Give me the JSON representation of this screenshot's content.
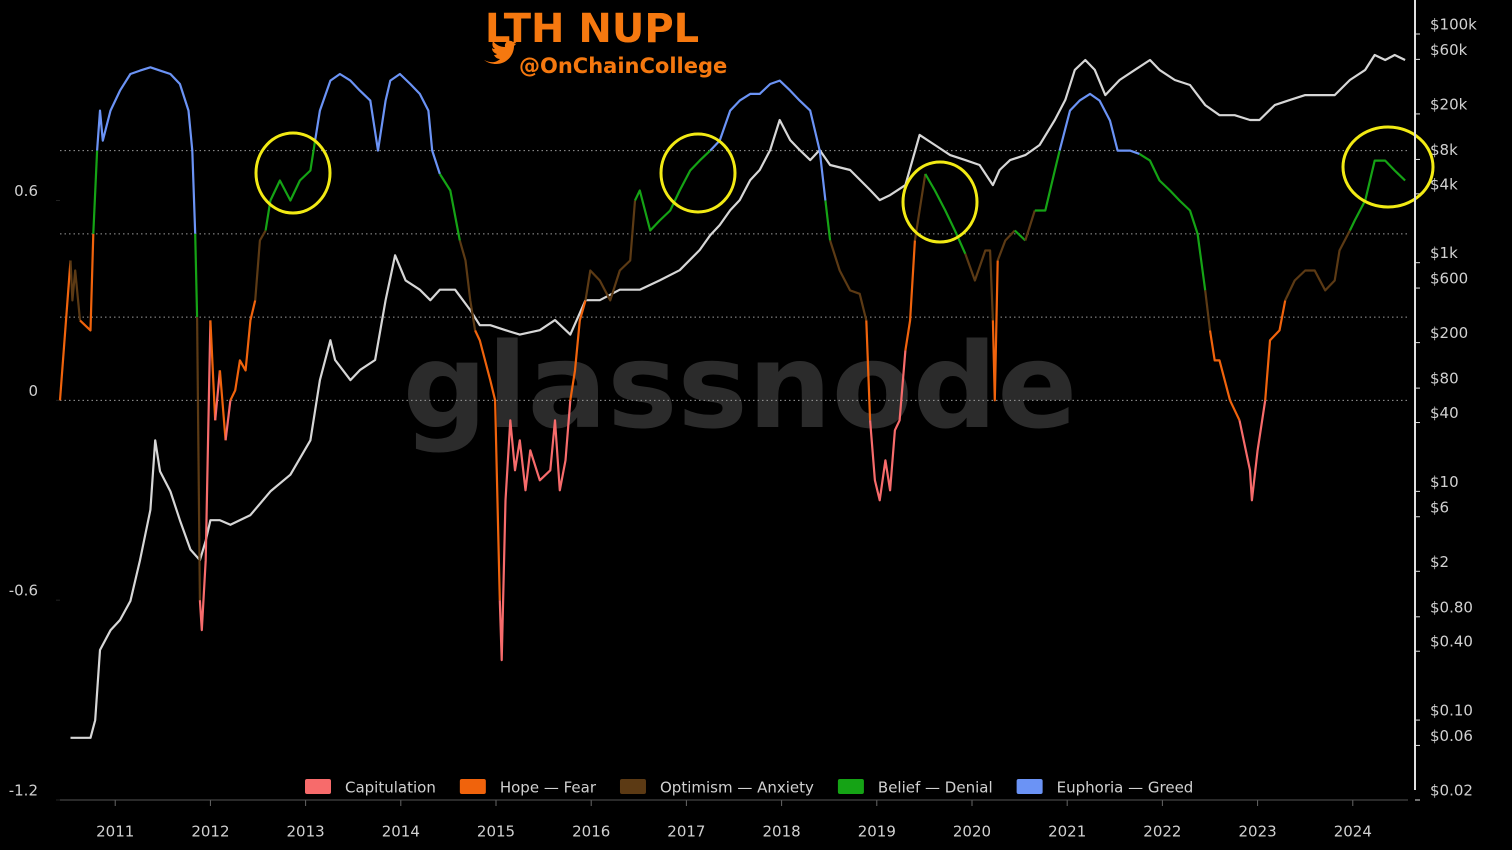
{
  "chart_data": {
    "type": "line",
    "title": "LTH NUPL",
    "subtitle": "@OnChainCollege",
    "watermark": "glassnode",
    "xlim": [
      2010.42,
      2024.58
    ],
    "xticks": [
      2011,
      2012,
      2013,
      2014,
      2015,
      2016,
      2017,
      2018,
      2019,
      2020,
      2021,
      2022,
      2023,
      2024
    ],
    "ylim": [
      -1.2,
      1.1
    ],
    "yticks": [
      -1.2,
      -0.6,
      0,
      0.6
    ],
    "y2lim": [
      0.02,
      100000
    ],
    "y2log": true,
    "y2ticks": [
      {
        "value": 100000,
        "label": "$100k"
      },
      {
        "value": 60000,
        "label": "$60k"
      },
      {
        "value": 20000,
        "label": "$20k"
      },
      {
        "value": 8000,
        "label": "$8k"
      },
      {
        "value": 4000,
        "label": "$4k"
      },
      {
        "value": 1000,
        "label": "$1k"
      },
      {
        "value": 600,
        "label": "$600"
      },
      {
        "value": 200,
        "label": "$200"
      },
      {
        "value": 80,
        "label": "$80"
      },
      {
        "value": 40,
        "label": "$40"
      },
      {
        "value": 10,
        "label": "$10"
      },
      {
        "value": 6,
        "label": "$6"
      },
      {
        "value": 2,
        "label": "$2"
      },
      {
        "value": 0.8,
        "label": "$0.80"
      },
      {
        "value": 0.4,
        "label": "$0.40"
      },
      {
        "value": 0.1,
        "label": "$0.10"
      },
      {
        "value": 0.06,
        "label": "$0.06"
      },
      {
        "value": 0.02,
        "label": "$0.02"
      }
    ],
    "zone_breaks": [
      0,
      0.25,
      0.5,
      0.75
    ],
    "zones": [
      {
        "name": "Capitulation",
        "color": "#f76b6b"
      },
      {
        "name": "Hope — Fear",
        "color": "#f0630c"
      },
      {
        "name": "Optimism — Anxiety",
        "color": "#5c3a14"
      },
      {
        "name": "Belief — Denial",
        "color": "#15a315"
      },
      {
        "name": "Euphoria — Greed",
        "color": "#6b93f5"
      }
    ],
    "series": [
      {
        "x": [
          2010.42,
          2010.53,
          2010.55,
          2010.58,
          2010.63,
          2010.74,
          2010.77,
          2010.81,
          2010.84,
          2010.87,
          2010.95,
          2011.05,
          2011.16,
          2011.26,
          2011.37,
          2011.47,
          2011.58,
          2011.68,
          2011.77,
          2011.81,
          2011.84,
          2011.86,
          2011.89,
          2011.91,
          2011.95,
          2012.0,
          2012.05,
          2012.1,
          2012.16,
          2012.21,
          2012.26,
          2012.31,
          2012.37,
          2012.42,
          2012.47,
          2012.52,
          2012.58,
          2012.63,
          2012.73,
          2012.84,
          2012.94,
          2013.05,
          2013.1,
          2013.15,
          2013.26,
          2013.36,
          2013.47,
          2013.57,
          2013.68,
          2013.76,
          2013.84,
          2013.89,
          2013.99,
          2014.1,
          2014.2,
          2014.29,
          2014.33,
          2014.41,
          2014.52,
          2014.62,
          2014.68,
          2014.73,
          2014.78,
          2014.83,
          2014.94,
          2014.99,
          2015.04,
          2015.06,
          2015.1,
          2015.15,
          2015.2,
          2015.25,
          2015.31,
          2015.36,
          2015.46,
          2015.57,
          2015.62,
          2015.67,
          2015.73,
          2015.78,
          2015.83,
          2015.88,
          2015.94,
          2015.99,
          2016.09,
          2016.2,
          2016.3,
          2016.41,
          2016.46,
          2016.51,
          2016.62,
          2016.72,
          2016.83,
          2016.93,
          2017.04,
          2017.14,
          2017.25,
          2017.35,
          2017.46,
          2017.56,
          2017.67,
          2017.77,
          2017.88,
          2017.98,
          2018.09,
          2018.19,
          2018.3,
          2018.4,
          2018.46,
          2018.51,
          2018.61,
          2018.72,
          2018.82,
          2018.89,
          2018.93,
          2018.98,
          2019.03,
          2019.09,
          2019.14,
          2019.19,
          2019.24,
          2019.3,
          2019.35,
          2019.4,
          2019.51,
          2019.61,
          2019.72,
          2019.82,
          2019.93,
          2020.03,
          2020.14,
          2020.19,
          2020.22,
          2020.24,
          2020.27,
          2020.35,
          2020.45,
          2020.56,
          2020.66,
          2020.77,
          2020.87,
          2020.92,
          2021.03,
          2021.13,
          2021.24,
          2021.34,
          2021.45,
          2021.53,
          2021.66,
          2021.76,
          2021.87,
          2021.97,
          2022.08,
          2022.18,
          2022.29,
          2022.37,
          2022.45,
          2022.5,
          2022.55,
          2022.6,
          2022.71,
          2022.81,
          2022.92,
          2022.94,
          2023.0,
          2023.08,
          2023.13,
          2023.23,
          2023.29,
          2023.39,
          2023.5,
          2023.6,
          2023.71,
          2023.81,
          2023.86,
          2023.97,
          2024.02,
          2024.13,
          2024.23,
          2024.34,
          2024.44,
          2024.55
        ],
        "values": [
          0,
          0.42,
          0.3,
          0.39,
          0.24,
          0.21,
          0.5,
          0.75,
          0.87,
          0.78,
          0.87,
          0.93,
          0.98,
          0.99,
          1.0,
          0.99,
          0.98,
          0.95,
          0.87,
          0.75,
          0.5,
          0.25,
          -0.6,
          -0.69,
          -0.48,
          0.24,
          -0.06,
          0.09,
          -0.12,
          0,
          0.03,
          0.12,
          0.09,
          0.24,
          0.3,
          0.48,
          0.51,
          0.6,
          0.66,
          0.6,
          0.66,
          0.69,
          0.78,
          0.87,
          0.96,
          0.98,
          0.96,
          0.93,
          0.9,
          0.75,
          0.9,
          0.96,
          0.98,
          0.95,
          0.92,
          0.87,
          0.75,
          0.68,
          0.63,
          0.48,
          0.42,
          0.3,
          0.21,
          0.18,
          0.06,
          0,
          -0.6,
          -0.78,
          -0.3,
          -0.06,
          -0.21,
          -0.12,
          -0.27,
          -0.15,
          -0.24,
          -0.21,
          -0.06,
          -0.27,
          -0.18,
          0,
          0.09,
          0.24,
          0.3,
          0.39,
          0.36,
          0.3,
          0.39,
          0.42,
          0.6,
          0.63,
          0.51,
          0.54,
          0.57,
          0.63,
          0.69,
          0.72,
          0.75,
          0.78,
          0.87,
          0.9,
          0.92,
          0.92,
          0.95,
          0.96,
          0.93,
          0.9,
          0.87,
          0.75,
          0.6,
          0.48,
          0.39,
          0.33,
          0.32,
          0.24,
          -0.06,
          -0.24,
          -0.3,
          -0.18,
          -0.27,
          -0.09,
          -0.06,
          0.15,
          0.24,
          0.48,
          0.68,
          0.63,
          0.57,
          0.51,
          0.44,
          0.36,
          0.45,
          0.45,
          0.24,
          0,
          0.42,
          0.48,
          0.51,
          0.48,
          0.57,
          0.57,
          0.69,
          0.75,
          0.87,
          0.9,
          0.92,
          0.9,
          0.84,
          0.75,
          0.75,
          0.74,
          0.72,
          0.66,
          0.63,
          0.6,
          0.57,
          0.5,
          0.33,
          0.21,
          0.12,
          0.12,
          0,
          -0.06,
          -0.21,
          -0.3,
          -0.15,
          0,
          0.18,
          0.21,
          0.3,
          0.36,
          0.39,
          0.39,
          0.33,
          0.36,
          0.45,
          0.51,
          0.54,
          0.6,
          0.72,
          0.72,
          0.69,
          0.66
        ]
      },
      {
        "color": "#d6d6d6",
        "axis": "y2",
        "x": [
          2010.53,
          2010.63,
          2010.74,
          2010.79,
          2010.84,
          2010.95,
          2011.05,
          2011.16,
          2011.26,
          2011.37,
          2011.42,
          2011.47,
          2011.58,
          2011.68,
          2011.79,
          2011.89,
          2011.95,
          2012.0,
          2012.1,
          2012.21,
          2012.42,
          2012.63,
          2012.84,
          2013.05,
          2013.15,
          2013.26,
          2013.31,
          2013.47,
          2013.57,
          2013.73,
          2013.84,
          2013.94,
          2014.05,
          2014.2,
          2014.31,
          2014.41,
          2014.57,
          2014.73,
          2014.83,
          2014.94,
          2015.1,
          2015.25,
          2015.46,
          2015.62,
          2015.78,
          2015.94,
          2016.09,
          2016.3,
          2016.51,
          2016.72,
          2016.93,
          2017.14,
          2017.25,
          2017.35,
          2017.46,
          2017.56,
          2017.67,
          2017.77,
          2017.88,
          2017.98,
          2018.09,
          2018.19,
          2018.3,
          2018.4,
          2018.51,
          2018.72,
          2018.93,
          2019.03,
          2019.14,
          2019.3,
          2019.45,
          2019.61,
          2019.77,
          2019.93,
          2020.08,
          2020.22,
          2020.29,
          2020.4,
          2020.56,
          2020.71,
          2020.87,
          2020.98,
          2021.08,
          2021.19,
          2021.29,
          2021.4,
          2021.55,
          2021.71,
          2021.87,
          2021.97,
          2022.13,
          2022.29,
          2022.45,
          2022.6,
          2022.76,
          2022.92,
          2023.02,
          2023.18,
          2023.34,
          2023.5,
          2023.65,
          2023.81,
          2023.97,
          2024.13,
          2024.23,
          2024.34,
          2024.44,
          2024.55
        ],
        "values": [
          0.07,
          0.07,
          0.07,
          0.1,
          0.41,
          0.61,
          0.75,
          1.1,
          2.5,
          6.9,
          28,
          15,
          10,
          5.6,
          3.1,
          2.5,
          3.7,
          5.6,
          5.6,
          5.1,
          6.2,
          10,
          14,
          28,
          94,
          210,
          141,
          94,
          115,
          141,
          470,
          1160,
          700,
          580,
          470,
          580,
          580,
          385,
          284,
          284,
          257,
          235,
          257,
          315,
          235,
          470,
          470,
          580,
          580,
          700,
          860,
          1290,
          1740,
          2130,
          2880,
          3530,
          5280,
          6460,
          9670,
          17700,
          11800,
          9670,
          7900,
          9670,
          7150,
          6460,
          4320,
          3530,
          3900,
          4770,
          13100,
          10700,
          8730,
          7900,
          7150,
          4770,
          6460,
          7900,
          8730,
          10700,
          17700,
          26500,
          48500,
          59300,
          48500,
          29200,
          39600,
          48500,
          59300,
          48500,
          39600,
          35800,
          23900,
          19500,
          19500,
          17700,
          17700,
          23900,
          26500,
          29200,
          29200,
          29200,
          39600,
          48500,
          65500,
          59300,
          65500,
          59300
        ]
      }
    ]
  }
}
